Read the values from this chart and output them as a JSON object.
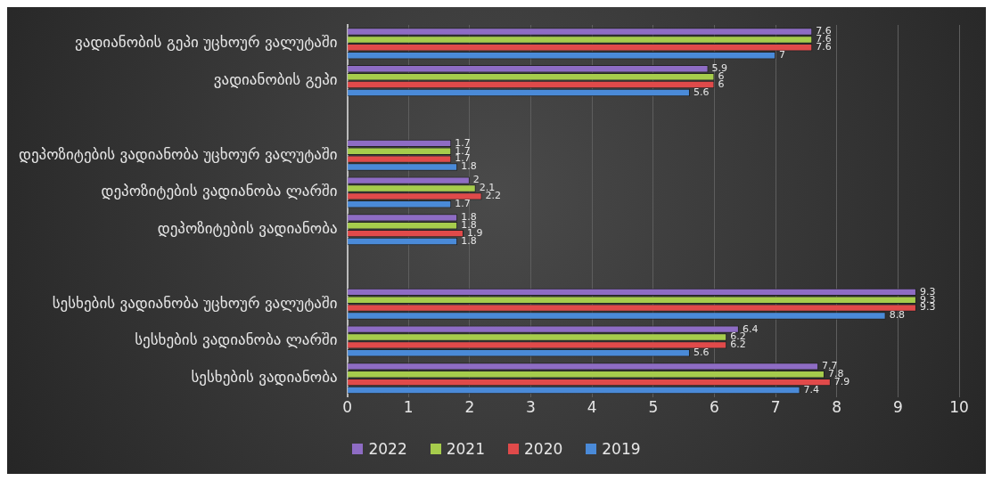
{
  "chart_data": {
    "type": "bar",
    "orientation": "horizontal",
    "categories": [
      "ვადიანობის გეპი უცხოურ ვალუტაში",
      "ვადიანობის გეპი",
      null,
      "დეპოზიტების ვადიანობა უცხოურ ვალუტაში",
      "დეპოზიტების ვადიანობა ლარში",
      "დეპოზიტების ვადიანობა",
      null,
      "სესხების ვადიანობა უცხოურ ვალუტაში",
      "სესხების ვადიანობა ლარში",
      "სესხების ვადიანობა"
    ],
    "series": [
      {
        "name": "2022",
        "color": "#8e6cc4",
        "values": [
          7.6,
          5.9,
          null,
          1.7,
          2,
          1.8,
          null,
          9.3,
          6.4,
          7.7
        ]
      },
      {
        "name": "2021",
        "color": "#a6cc4c",
        "values": [
          7.6,
          6,
          null,
          1.7,
          2.1,
          1.8,
          null,
          9.3,
          6.2,
          7.8
        ]
      },
      {
        "name": "2020",
        "color": "#e04a4a",
        "values": [
          7.6,
          6,
          null,
          1.7,
          2.2,
          1.9,
          null,
          9.3,
          6.2,
          7.9
        ]
      },
      {
        "name": "2019",
        "color": "#4a8ad8",
        "values": [
          7,
          5.6,
          null,
          1.8,
          1.7,
          1.8,
          null,
          8.8,
          5.6,
          7.4
        ]
      }
    ],
    "xlim": [
      0,
      10
    ],
    "xticks": [
      0,
      1,
      2,
      3,
      4,
      5,
      6,
      7,
      8,
      9,
      10
    ],
    "grid": "x",
    "legend": "bottom",
    "data_labels": true
  }
}
